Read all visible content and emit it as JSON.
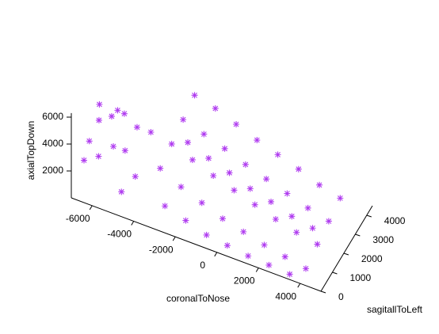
{
  "chart_data": {
    "type": "scatter3d",
    "xlabel": "coronalToNose",
    "ylabel": "sagitallToLeft",
    "zlabel": "axialTopDown",
    "color": "#b03cf0",
    "marker": "asterisk",
    "xlim": [
      -7000,
      5000
    ],
    "ylim": [
      0,
      4500
    ],
    "zlim": [
      0,
      6000
    ],
    "xticks": [
      -6000,
      -4000,
      -2000,
      0,
      2000,
      4000
    ],
    "yticks": [
      0,
      1000,
      2000,
      3000,
      4000
    ],
    "zticks": [
      2000,
      4000,
      6000
    ],
    "x": [
      -6500,
      -6300,
      -6000,
      -5800,
      -5500,
      -5200,
      -5000,
      -4800,
      -4500,
      -4200,
      -4000,
      -6200,
      -5600,
      -4700,
      -3000,
      -3000,
      -3000,
      -3000,
      -2000,
      -2000,
      -2000,
      -2000,
      -1000,
      -1000,
      -1000,
      -1000,
      0,
      0,
      0,
      0,
      1000,
      1000,
      1000,
      1000,
      2000,
      2000,
      2000,
      2000,
      3000,
      3000,
      3000,
      3000,
      4000,
      4000,
      4000,
      4000,
      -2500,
      -1500,
      -500,
      500,
      1500,
      2500,
      3500,
      -2500,
      -1500,
      -500,
      500,
      1500,
      2500,
      3500
    ],
    "y": [
      200,
      300,
      600,
      200,
      800,
      400,
      1000,
      700,
      1200,
      500,
      1500,
      1000,
      1500,
      200,
      500,
      1500,
      2500,
      3500,
      500,
      1500,
      2500,
      3500,
      500,
      1500,
      2500,
      3500,
      500,
      1500,
      2500,
      3500,
      500,
      1500,
      2500,
      3500,
      500,
      1500,
      2500,
      3500,
      500,
      1500,
      2500,
      3500,
      500,
      1500,
      2500,
      3500,
      0,
      0,
      0,
      0,
      0,
      0,
      0,
      2000,
      2000,
      2000,
      2000,
      2000,
      2000,
      2000
    ],
    "z": [
      2800,
      4200,
      5500,
      3500,
      5800,
      4300,
      6000,
      3800,
      5000,
      2500,
      4500,
      6000,
      5200,
      1500,
      3800,
      4200,
      4600,
      5000,
      3000,
      3600,
      4100,
      4600,
      2400,
      3000,
      3600,
      4000,
      1800,
      2500,
      3000,
      3400,
      1400,
      2000,
      2500,
      2900,
      1000,
      1500,
      2000,
      2400,
      700,
      1100,
      1500,
      1800,
      400,
      800,
      1100,
      1400,
      2000,
      1500,
      1000,
      800,
      600,
      500,
      400,
      3900,
      3300,
      2800,
      2200,
      1800,
      1300,
      1000
    ]
  }
}
